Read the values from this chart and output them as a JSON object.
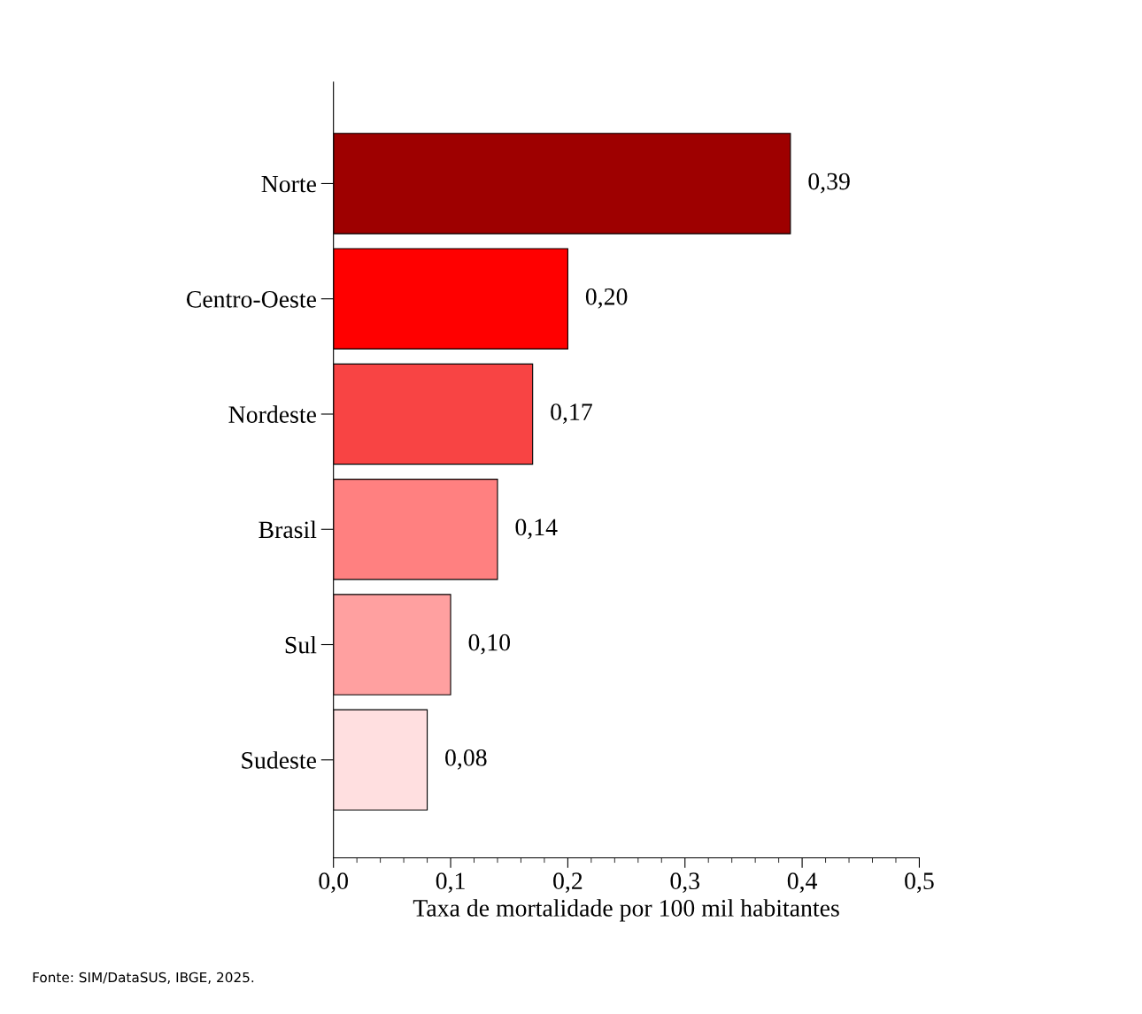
{
  "chart_data": {
    "type": "bar",
    "orientation": "horizontal",
    "categories": [
      "Norte",
      "Centro-Oeste",
      "Nordeste",
      "Brasil",
      "Sul",
      "Sudeste"
    ],
    "values": [
      0.39,
      0.2,
      0.17,
      0.14,
      0.1,
      0.08
    ],
    "value_labels": [
      "0,39",
      "0,20",
      "0,17",
      "0,14",
      "0,10",
      "0,08"
    ],
    "colors": [
      "#9e0000",
      "#ff0000",
      "#f84444",
      "#ff8080",
      "#ffa0a0",
      "#ffdfe0"
    ],
    "xlim": [
      0,
      0.5
    ],
    "xticks": [
      {
        "value": 0,
        "label": "0,0"
      },
      {
        "value": 0.1,
        "label": "0,1"
      },
      {
        "value": 0.2,
        "label": "0,2"
      },
      {
        "value": 0.3,
        "label": "0,3"
      },
      {
        "value": 0.4,
        "label": "0,4"
      },
      {
        "value": 0.5,
        "label": "0,5"
      }
    ],
    "xlabel": "Taxa de mortalidade por 100 mil habitantes",
    "grid": false,
    "legend": false,
    "annotations": [
      "Fonte: SIM/DataSUS, IBGE, 2025."
    ]
  }
}
